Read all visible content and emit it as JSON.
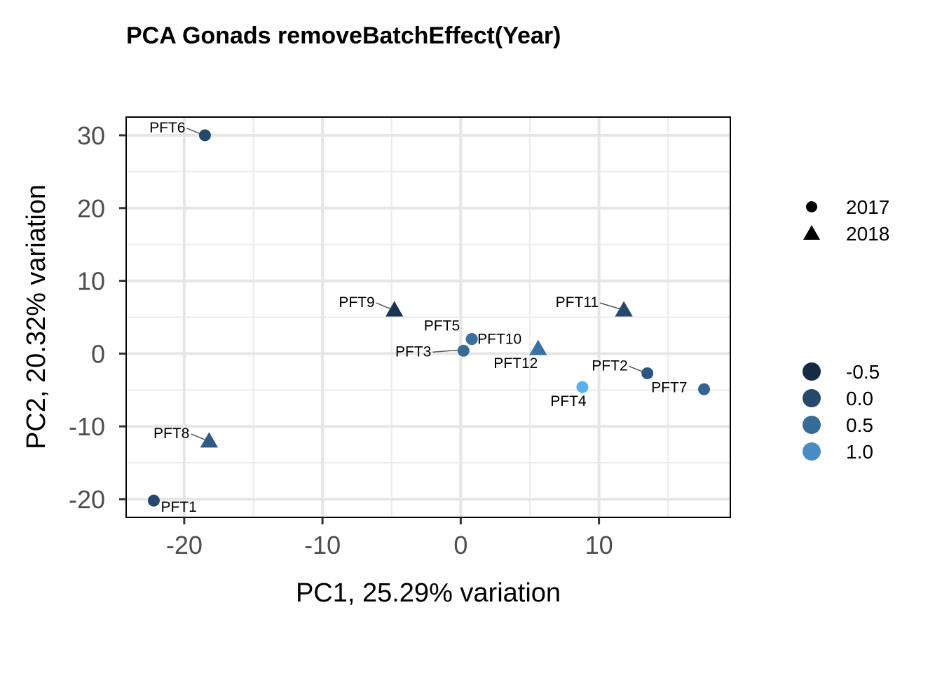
{
  "chart_data": {
    "type": "scatter",
    "title": "PCA Gonads removeBatchEffect(Year)",
    "xlabel": "PC1, 25.29% variation",
    "ylabel": "PC2, 20.32% variation",
    "xlim": [
      -24.2,
      19.5
    ],
    "ylim": [
      -22.5,
      32.5
    ],
    "x_ticks": [
      -20,
      -10,
      0,
      10
    ],
    "y_ticks": [
      -20,
      -10,
      0,
      10,
      20,
      30
    ],
    "grid": true,
    "legend_position": "right",
    "shape_legend": [
      {
        "label": "2017",
        "shape": "circle"
      },
      {
        "label": "2018",
        "shape": "triangle"
      }
    ],
    "color_legend": [
      {
        "label": "-0.5",
        "value": -0.5,
        "color": "#132B43"
      },
      {
        "label": "0.0",
        "value": 0.0,
        "color": "#25496C"
      },
      {
        "label": "0.5",
        "value": 0.5,
        "color": "#366A97"
      },
      {
        "label": "1.0",
        "value": 1.0,
        "color": "#478DC4"
      }
    ],
    "points": [
      {
        "label": "PFT6",
        "x": -18.5,
        "y": 30.0,
        "year": "2017",
        "color": "#25496C"
      },
      {
        "label": "PFT1",
        "x": -22.2,
        "y": -20.2,
        "year": "2017",
        "color": "#25496C"
      },
      {
        "label": "PFT8",
        "x": -18.2,
        "y": -12.0,
        "year": "2018",
        "color": "#2E5A85"
      },
      {
        "label": "PFT9",
        "x": -4.8,
        "y": 6.0,
        "year": "2018",
        "color": "#1A3350"
      },
      {
        "label": "PFT5",
        "x": 0.8,
        "y": 2.0,
        "year": "2017",
        "color": "#366A97"
      },
      {
        "label": "PFT10",
        "x": 0.8,
        "y": 2.0,
        "year": "2017",
        "color": "#3A70A0"
      },
      {
        "label": "PFT3",
        "x": 0.2,
        "y": 0.4,
        "year": "2017",
        "color": "#366A97"
      },
      {
        "label": "PFT12",
        "x": 5.6,
        "y": 0.7,
        "year": "2018",
        "color": "#3A72A6"
      },
      {
        "label": "PFT11",
        "x": 11.8,
        "y": 6.0,
        "year": "2018",
        "color": "#25496C"
      },
      {
        "label": "PFT2",
        "x": 13.5,
        "y": -2.7,
        "year": "2017",
        "color": "#2C5581"
      },
      {
        "label": "PFT4",
        "x": 8.8,
        "y": -4.6,
        "year": "2017",
        "color": "#56B1F7"
      },
      {
        "label": "PFT7",
        "x": 17.6,
        "y": -4.9,
        "year": "2017",
        "color": "#336493"
      }
    ]
  }
}
